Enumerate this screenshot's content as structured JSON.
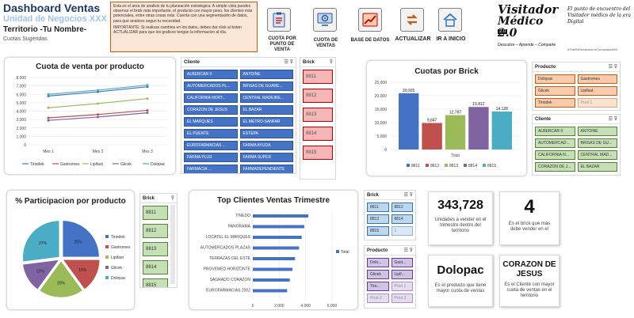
{
  "header": {
    "title": "Dashboard Ventas",
    "subtitle": "Unidad de Negocios XXX",
    "territory": "Territorio -Tu Nombre-",
    "cuotas_sugeridas": "Cuotas Sugeridas"
  },
  "info": {
    "p1": "Esta es el area de analisis de tu planeación estrategica. A simple vista puedes observar el brick más importante, el producto con mayor peso, los clientes más potenciales, entre otras cosas más.  Cuenta con una segmentación de datos, para que analices segun tu necesidad.",
    "p2": "IMPORTANTE: Si realizas cambios en los datos, debes dar click al boton ACTUALIZAR para que los graficos tengan la informacion al día."
  },
  "nav": {
    "cuota": "CUOTA POR PUNTO DE VENTA",
    "cuota_ventas": "CUOTA DE VENTAS",
    "base_datos": "BASE DE DATOS",
    "actualizar": "ACTUALIZAR",
    "inicio": "IR A INICIO"
  },
  "brand": {
    "logo_line1": "Visitador",
    "logo_line2": "Médico 2.0",
    "version_tag": "2.0",
    "tagline_words": "Descubre – Aprende – Comparte",
    "slogan": "El punto de encuentro del Visitador médico de la era Digital",
    "hashtags": "#TheRxRevolution #ComunidadVM"
  },
  "colors": {
    "tiroidek": "#4472c4",
    "gastromes": "#c0504d",
    "lipifast": "#9bbb59",
    "glicek": "#8064a2",
    "dolopac": "#4bacc6"
  },
  "chart_data": [
    {
      "type": "line",
      "title": "Cuota de venta por producto",
      "categories": [
        "Mes 1",
        "Mes 2",
        "Mes 3"
      ],
      "ylim": [
        0,
        8000
      ],
      "yticks": [
        "0",
        "1,000",
        "2,000",
        "3,000",
        "4,000",
        "5,000",
        "6,000",
        "7,000",
        "8,000"
      ],
      "series": [
        {
          "name": "Tiroidek",
          "values": [
            5800,
            6300,
            6900
          ]
        },
        {
          "name": "Gastromes",
          "values": [
            3200,
            3600,
            4100
          ]
        },
        {
          "name": "Lipifast",
          "values": [
            4400,
            4900,
            5500
          ]
        },
        {
          "name": "Glicek",
          "values": [
            2900,
            3300,
            3800
          ]
        },
        {
          "name": "Dolopac",
          "values": [
            6000,
            6500,
            7100
          ]
        }
      ]
    },
    {
      "type": "bar",
      "title": "Cuotas por Brick",
      "xlabel": "Total",
      "ylim": [
        0,
        25000
      ],
      "yticks": [
        "0",
        "5,000",
        "10,000",
        "15,000",
        "20,000",
        "25,000"
      ],
      "series": [
        {
          "name": "8811",
          "value": 20925,
          "label": "20,925"
        },
        {
          "name": "8812",
          "value": 9847,
          "label": "9,847"
        },
        {
          "name": "8813",
          "value": 12787,
          "label": "12,787"
        },
        {
          "name": "8814",
          "value": 15812,
          "label": "15,812"
        },
        {
          "name": "8815",
          "value": 14128,
          "label": "14,128"
        }
      ]
    },
    {
      "type": "pie",
      "title": "% Participacion por producto",
      "slices": [
        {
          "name": "Tiroidek",
          "value": 25,
          "label": "25%"
        },
        {
          "name": "Gastromes",
          "value": 15,
          "label": "15%"
        },
        {
          "name": "Lipifast",
          "value": 20,
          "label": "20%"
        },
        {
          "name": "Glicek",
          "value": 13,
          "label": "13%"
        },
        {
          "name": "Dolopac",
          "value": 27,
          "label": "27%"
        }
      ]
    },
    {
      "type": "bar",
      "title": "Top Clientes Ventas Trimestre",
      "orientation": "horizontal",
      "legend": "Total",
      "xlim": [
        0,
        6000
      ],
      "xticks": [
        "0",
        "2,000",
        "4,000",
        "6,000"
      ],
      "categories": [
        "TINEDO",
        "PANORAMA",
        "LOCATEL EL MARQUES",
        "AUTOMERCADOS PLAZAS",
        "TERRAZAS DEL ESTE",
        "PROVEMED HORIZONTE",
        "SAGRADO CORAZON",
        "EUROFARMACIAS 2002"
      ],
      "values": [
        4200,
        3900,
        3700,
        3500,
        3200,
        3000,
        2800,
        2600
      ]
    }
  ],
  "slicers": {
    "cliente": {
      "title": "Cliente",
      "items": [
        "ALBERCAR II",
        "ANTOINE",
        "AUTOMERCADOS PL...",
        "BRISAS DE GUARE...",
        "CALIFORNIA NORT...",
        "CENTRAL MADEIRE...",
        "CORAZON DE JESUS",
        "EL BAZAR",
        "EL MARQUES",
        "EL METRO-SANFAR",
        "EL PUENTE",
        "ESTEPA",
        "EUROFARMACIAS ...",
        "FARMA AYUDA",
        "FARMA PLUS",
        "FARMA SUPER",
        "FARMACIA ...",
        "FARMADEPENDIENTE"
      ]
    },
    "brick_top": {
      "title": "Brick",
      "items": [
        "8811",
        "8812",
        "8813",
        "8814",
        "8815"
      ]
    },
    "producto_top": {
      "title": "Producto",
      "items": [
        "Dolopac",
        "Gastromes",
        "Glicek",
        "Lipifast",
        "Tiroidek",
        "Prod 1"
      ]
    },
    "cliente_right": {
      "title": "Cliente",
      "items": [
        "ALBERCAR II",
        "ANTOINE",
        "AUTOMERCAD...",
        "BRISAS DE GU...",
        "CALIFORNIA N...",
        "CENTRAL MAD...",
        "CORAZON DE J...",
        "EL BAZAR"
      ]
    },
    "brick_pie": {
      "title": "Brick",
      "items": [
        "8811",
        "8812",
        "8813",
        "8814",
        "8815"
      ]
    },
    "brick_small": {
      "title": "Brick",
      "items": [
        "8811",
        "8812",
        "8813",
        "8814",
        "8815",
        "1"
      ]
    },
    "producto_small": {
      "title": "Producto",
      "items": [
        "Dolo...",
        "Gast...",
        "Glicek",
        "Lipif...",
        "Tiro...",
        "Prod 1",
        "Prod 2",
        "Prod 3"
      ]
    }
  },
  "kpis": {
    "units": {
      "value": "343,728",
      "desc": "Unidades a vender en el trimestre dentro del territorio"
    },
    "brick": {
      "value": "4",
      "desc": "Es el brick que más debe vender en el"
    },
    "product": {
      "value": "Dolopac",
      "desc": "Es el producto que tiene mayor cuota de ventas"
    },
    "client": {
      "value": "CORAZON DE JESUS",
      "desc": "Es el Cliente con mayor cuota de ventas en el territorio"
    }
  }
}
